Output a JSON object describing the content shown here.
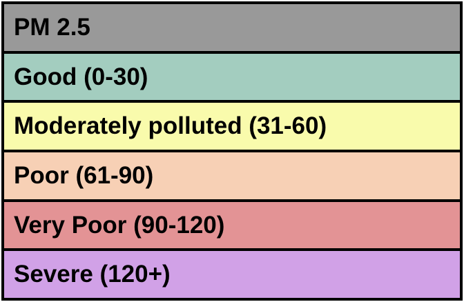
{
  "legend": {
    "header": {
      "label": "PM 2.5",
      "color": "#999999"
    },
    "categories": [
      {
        "label": "Good (0-30)",
        "color": "#a3cdbf"
      },
      {
        "label": "Moderately polluted (31-60)",
        "color": "#f9fbac"
      },
      {
        "label": "Poor (61-90)",
        "color": "#f7d0b5"
      },
      {
        "label": "Very Poor (90-120)",
        "color": "#e39395"
      },
      {
        "label": "Severe (120+)",
        "color": "#d1a1e7"
      }
    ]
  }
}
